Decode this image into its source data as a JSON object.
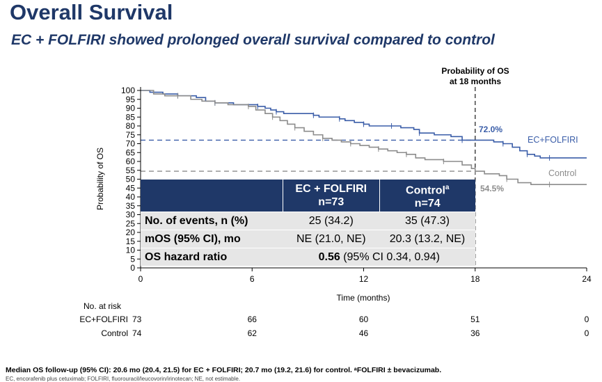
{
  "header": {
    "title": "Overall Survival",
    "subtitle": "EC + FOLFIRI showed prolonged overall survival compared to control"
  },
  "chart_data": {
    "type": "line",
    "xlabel": "Time (months)",
    "ylabel": "Probability of OS",
    "xlim": [
      0,
      24
    ],
    "ylim": [
      0,
      100
    ],
    "x_ticks": [
      "0",
      "6",
      "12",
      "18",
      "24"
    ],
    "y_ticks": [
      "0",
      "5",
      "10",
      "15",
      "20",
      "25",
      "30",
      "35",
      "40",
      "45",
      "50",
      "55",
      "60",
      "65",
      "70",
      "75",
      "80",
      "85",
      "90",
      "95",
      "100"
    ],
    "colors": {
      "ec_folfiri": "#3a5da8",
      "control": "#8c8c8c",
      "ref_line": "#444444"
    },
    "series": [
      {
        "name": "EC+FOLFIRI",
        "color": "#3a5da8",
        "points": [
          [
            0,
            100
          ],
          [
            0.5,
            99
          ],
          [
            1.2,
            98
          ],
          [
            2,
            97
          ],
          [
            3,
            96
          ],
          [
            3.5,
            94
          ],
          [
            4,
            93
          ],
          [
            5,
            92
          ],
          [
            6,
            92
          ],
          [
            6.3,
            91
          ],
          [
            6.7,
            90
          ],
          [
            7,
            89
          ],
          [
            7.3,
            88
          ],
          [
            7.7,
            87
          ],
          [
            8.5,
            87
          ],
          [
            9.3,
            86
          ],
          [
            9.6,
            85
          ],
          [
            10,
            85
          ],
          [
            10.7,
            84
          ],
          [
            11,
            83
          ],
          [
            11.5,
            82
          ],
          [
            12,
            81
          ],
          [
            12.3,
            80
          ],
          [
            12.7,
            80
          ],
          [
            13.5,
            80
          ],
          [
            14,
            79
          ],
          [
            14.7,
            78
          ],
          [
            15,
            76
          ],
          [
            15.8,
            75
          ],
          [
            16.7,
            74
          ],
          [
            17.3,
            72
          ],
          [
            18,
            72
          ],
          [
            19,
            71
          ],
          [
            19.5,
            70
          ],
          [
            20,
            68
          ],
          [
            20.4,
            66
          ],
          [
            20.8,
            64
          ],
          [
            21.2,
            63
          ],
          [
            21.5,
            62
          ],
          [
            22,
            62
          ],
          [
            24,
            62
          ]
        ],
        "label": "EC+FOLFIRI",
        "at18_label": "72.0%",
        "at18_value": 72.0
      },
      {
        "name": "Control",
        "color": "#8c8c8c",
        "points": [
          [
            0,
            100
          ],
          [
            0.7,
            98
          ],
          [
            1.3,
            97
          ],
          [
            2,
            97
          ],
          [
            2.7,
            95
          ],
          [
            3.3,
            94
          ],
          [
            4,
            93
          ],
          [
            4.7,
            92
          ],
          [
            5.3,
            92
          ],
          [
            5.8,
            91
          ],
          [
            6.2,
            89
          ],
          [
            6.7,
            87
          ],
          [
            7.1,
            85
          ],
          [
            7.5,
            83
          ],
          [
            7.9,
            81
          ],
          [
            8.3,
            79
          ],
          [
            8.8,
            77
          ],
          [
            9.3,
            75
          ],
          [
            9.8,
            73
          ],
          [
            10.3,
            72
          ],
          [
            10.8,
            71
          ],
          [
            11.3,
            70
          ],
          [
            11.8,
            69
          ],
          [
            12.3,
            68
          ],
          [
            12.8,
            67
          ],
          [
            13.3,
            66
          ],
          [
            13.8,
            65
          ],
          [
            14.3,
            64
          ],
          [
            14.8,
            62
          ],
          [
            15.3,
            61
          ],
          [
            16.3,
            60
          ],
          [
            17.3,
            58
          ],
          [
            17.8,
            56
          ],
          [
            18,
            54.5
          ],
          [
            18.5,
            53
          ],
          [
            19.3,
            52
          ],
          [
            19.7,
            50
          ],
          [
            20.3,
            48
          ],
          [
            21,
            47
          ],
          [
            22,
            47
          ],
          [
            24,
            47
          ]
        ],
        "label": "Control",
        "at18_label": "54.5%",
        "at18_value": 54.5
      }
    ],
    "annotation_18mo": "Probability of OS\nat 18 months"
  },
  "table": {
    "col1_header_line1": "EC + FOLFIRI",
    "col1_header_line2": "n=73",
    "col2_header_line1": "Control",
    "col2_header_sup": "a",
    "col2_header_line2": "n=74",
    "rows": [
      {
        "label": "No. of events, n (%)",
        "ec": "25 (34.2)",
        "control": "35 (47.3)"
      },
      {
        "label": "mOS (95% CI), mo",
        "ec": "NE (21.0, NE)",
        "control": "20.3 (13.2, NE)"
      }
    ],
    "hr_label": "OS hazard ratio",
    "hr_value": "0.56",
    "hr_ci": "(95% CI 0.34, 0.94)"
  },
  "risk_table": {
    "title": "No. at risk",
    "rows": [
      {
        "label": "EC+FOLFIRI",
        "values": [
          "73",
          "66",
          "60",
          "51",
          "0"
        ]
      },
      {
        "label": "Control",
        "values": [
          "74",
          "62",
          "46",
          "36",
          "0"
        ]
      }
    ]
  },
  "footnote": {
    "line1": "Median OS follow-up (95% CI): 20.6 mo (20.4, 21.5) for EC + FOLFIRI; 20.7 mo (19.2, 21.6) for control. ᵃFOLFIRI ± bevacizumab.",
    "line2": "EC, encorafenib plus cetuximab; FOLFIRI, fluorouracil/leucovorin/irinotecan; NE, not estimable."
  }
}
